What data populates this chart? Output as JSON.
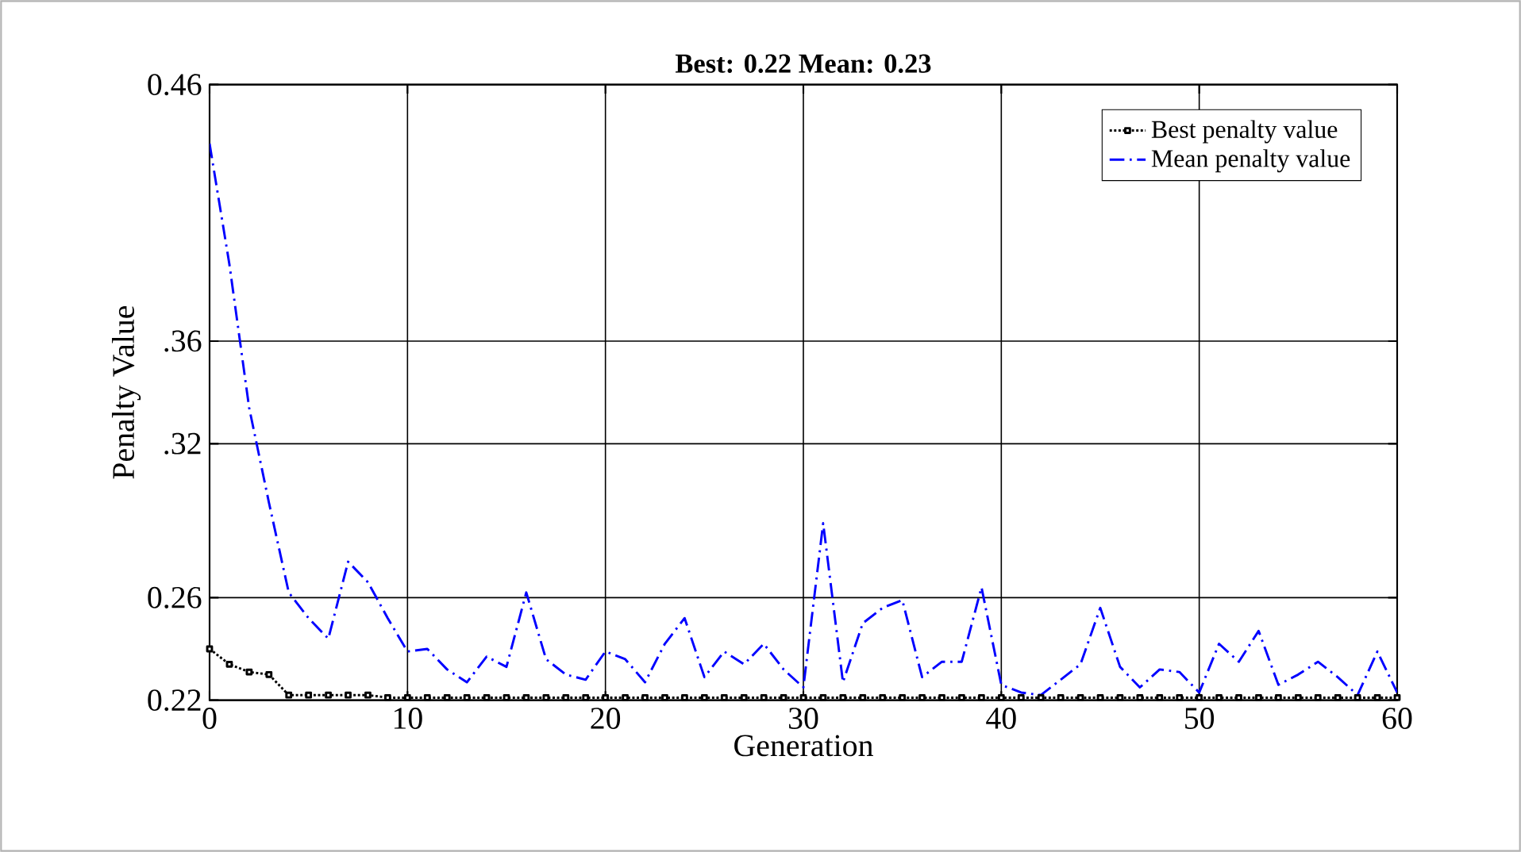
{
  "chart_data": {
    "type": "line",
    "title": "Best: 0.22 Mean: 0.23",
    "xlabel": "Generation",
    "ylabel": "Penalty Value",
    "x": [
      0,
      1,
      2,
      3,
      4,
      5,
      6,
      7,
      8,
      9,
      10,
      11,
      12,
      13,
      14,
      15,
      16,
      17,
      18,
      19,
      20,
      21,
      22,
      23,
      24,
      25,
      26,
      27,
      28,
      29,
      30,
      31,
      32,
      33,
      34,
      35,
      36,
      37,
      38,
      39,
      40,
      41,
      42,
      43,
      44,
      45,
      46,
      47,
      48,
      49,
      50,
      51,
      52,
      53,
      54,
      55,
      56,
      57,
      58,
      59,
      60
    ],
    "series": [
      {
        "name": "Best penalty value",
        "color": "#000000",
        "marker": "square",
        "line_style": "dotted",
        "values": [
          0.24,
          0.234,
          0.231,
          0.23,
          0.222,
          0.222,
          0.222,
          0.222,
          0.222,
          0.221,
          0.221,
          0.221,
          0.221,
          0.221,
          0.221,
          0.221,
          0.221,
          0.221,
          0.221,
          0.221,
          0.221,
          0.221,
          0.221,
          0.221,
          0.221,
          0.221,
          0.221,
          0.221,
          0.221,
          0.221,
          0.221,
          0.221,
          0.221,
          0.221,
          0.221,
          0.221,
          0.221,
          0.221,
          0.221,
          0.221,
          0.221,
          0.221,
          0.221,
          0.221,
          0.221,
          0.221,
          0.221,
          0.221,
          0.221,
          0.221,
          0.221,
          0.221,
          0.221,
          0.221,
          0.221,
          0.221,
          0.221,
          0.221,
          0.221,
          0.221,
          0.221
        ]
      },
      {
        "name": "Mean penalty value",
        "color": "#0000ff",
        "marker": "none",
        "line_style": "dashdot",
        "values": [
          0.437,
          0.39,
          0.334,
          0.297,
          0.262,
          0.252,
          0.244,
          0.274,
          0.266,
          0.252,
          0.239,
          0.24,
          0.232,
          0.227,
          0.237,
          0.233,
          0.262,
          0.236,
          0.23,
          0.228,
          0.239,
          0.236,
          0.227,
          0.242,
          0.252,
          0.229,
          0.239,
          0.234,
          0.242,
          0.232,
          0.225,
          0.289,
          0.227,
          0.25,
          0.256,
          0.259,
          0.229,
          0.235,
          0.235,
          0.264,
          0.226,
          0.223,
          0.222,
          0.228,
          0.234,
          0.256,
          0.233,
          0.225,
          0.232,
          0.231,
          0.223,
          0.242,
          0.235,
          0.247,
          0.226,
          0.23,
          0.235,
          0.229,
          0.222,
          0.239,
          0.223
        ]
      }
    ],
    "xlim": [
      0,
      60
    ],
    "xticks": [
      0,
      10,
      20,
      30,
      40,
      50,
      60
    ],
    "ylim": [
      0.22,
      0.46
    ],
    "yticks": [
      0.22,
      0.26,
      {
        "value": 0.32,
        "label": ".32"
      },
      {
        "value": 0.36,
        "label": ".36"
      },
      0.46
    ],
    "grid": true,
    "legend": "top right"
  }
}
